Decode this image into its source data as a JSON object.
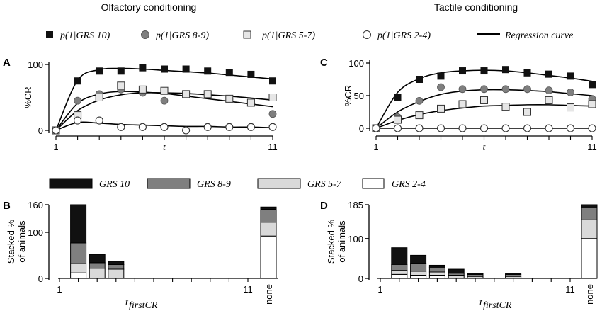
{
  "titles": {
    "left": "Olfactory conditioning",
    "right": "Tactile conditioning"
  },
  "panel_letters": {
    "a": "A",
    "b": "B",
    "c": "C",
    "d": "D"
  },
  "legend_top": {
    "items": [
      "p(1|GRS 10)",
      "p(1|GRS 8-9)",
      "p(1|GRS 5-7)",
      "p(1|GRS 2-4)"
    ],
    "regression": "Regression curve"
  },
  "legend_bottom": {
    "items": [
      "GRS 10",
      "GRS 8-9",
      "GRS 5-7",
      "GRS 2-4"
    ]
  },
  "colors": {
    "grs10": "#111111",
    "grs89": "#7f7f7f",
    "grs57": "#d9d9d9",
    "grs24": "#ffffff"
  },
  "chart_data": [
    {
      "id": "A",
      "type": "scatter",
      "title": "Olfactory conditioning",
      "xlabel": "t",
      "ylabel": "%CR",
      "xlim": [
        1,
        11
      ],
      "ylim": [
        0,
        100
      ],
      "xticks": [
        "1",
        "11"
      ],
      "yticks": [
        "0",
        "100"
      ],
      "x": [
        1,
        2,
        3,
        4,
        5,
        6,
        7,
        8,
        9,
        10,
        11
      ],
      "series": [
        {
          "name": "p(1|GRS 10)",
          "marker": "filled-square",
          "values": [
            0,
            75,
            90,
            90,
            95,
            93,
            93,
            90,
            88,
            85,
            75
          ],
          "fit": [
            0,
            76,
            92,
            94,
            93,
            91,
            89,
            87,
            84,
            81,
            78
          ]
        },
        {
          "name": "p(1|GRS 8-9)",
          "marker": "gray-circle",
          "values": [
            0,
            45,
            55,
            62,
            57,
            45,
            null,
            null,
            null,
            null,
            25
          ],
          "fit": [
            0,
            41,
            55,
            59,
            58,
            56,
            52,
            48,
            44,
            40,
            36
          ]
        },
        {
          "name": "p(1|GRS 5-7)",
          "marker": "open-square",
          "values": [
            0,
            23,
            50,
            68,
            62,
            60,
            55,
            55,
            48,
            42,
            50
          ],
          "fit": [
            0,
            30,
            46,
            54,
            57,
            57,
            56,
            54,
            52,
            49,
            46
          ]
        },
        {
          "name": "p(1|GRS 2-4)",
          "marker": "open-circle",
          "values": [
            0,
            15,
            15,
            5,
            5,
            5,
            0,
            5,
            5,
            5,
            5
          ],
          "fit": [
            0,
            12,
            11,
            9,
            8,
            7,
            6,
            6,
            5,
            5,
            4
          ]
        }
      ]
    },
    {
      "id": "C",
      "type": "scatter",
      "title": "Tactile conditioning",
      "xlabel": "t",
      "ylabel": "%CR",
      "xlim": [
        1,
        11
      ],
      "ylim": [
        0,
        100
      ],
      "xticks": [
        "1",
        "11"
      ],
      "yticks": [
        "0",
        "50",
        "100"
      ],
      "x": [
        1,
        2,
        3,
        4,
        5,
        6,
        7,
        8,
        9,
        10,
        11
      ],
      "series": [
        {
          "name": "p(1|GRS 10)",
          "marker": "filled-square",
          "values": [
            0,
            47,
            75,
            80,
            88,
            88,
            90,
            85,
            83,
            80,
            67
          ],
          "fit": [
            0,
            55,
            76,
            85,
            88,
            89,
            88,
            85,
            81,
            77,
            72
          ]
        },
        {
          "name": "p(1|GRS 8-9)",
          "marker": "gray-circle",
          "values": [
            0,
            17,
            42,
            63,
            60,
            60,
            60,
            60,
            58,
            55,
            45
          ],
          "fit": [
            0,
            25,
            41,
            52,
            57,
            59,
            59,
            58,
            56,
            53,
            50
          ]
        },
        {
          "name": "p(1|GRS 5-7)",
          "marker": "open-square",
          "values": [
            0,
            13,
            20,
            30,
            37,
            43,
            33,
            25,
            43,
            32,
            37
          ],
          "fit": [
            0,
            12,
            21,
            27,
            31,
            34,
            35,
            36,
            36,
            35,
            34
          ]
        },
        {
          "name": "p(1|GRS 2-4)",
          "marker": "open-circle",
          "values": [
            0,
            0,
            0,
            0,
            0,
            0,
            0,
            0,
            0,
            0,
            0
          ],
          "fit": [
            0,
            0,
            0,
            0,
            0,
            0,
            0,
            0,
            0,
            0,
            0
          ]
        }
      ]
    },
    {
      "id": "B",
      "type": "bar",
      "stacked": true,
      "xlabel": "t",
      "xlabel_sub": "firstCR",
      "ylabel": "Stacked % of animals",
      "ylim": [
        0,
        160
      ],
      "yticks": [
        "0",
        "100",
        "160"
      ],
      "xticks": [
        "1",
        "11",
        "none"
      ],
      "categories": [
        "2",
        "3",
        "4",
        "none"
      ],
      "series": [
        {
          "name": "GRS 2-4",
          "values": [
            12,
            0,
            0,
            92
          ]
        },
        {
          "name": "GRS 5-7",
          "values": [
            20,
            22,
            20,
            30
          ]
        },
        {
          "name": "GRS 8-9",
          "values": [
            45,
            12,
            10,
            28
          ]
        },
        {
          "name": "GRS 10",
          "values": [
            83,
            18,
            7,
            5
          ]
        }
      ]
    },
    {
      "id": "D",
      "type": "bar",
      "stacked": true,
      "xlabel": "t",
      "xlabel_sub": "firstCR",
      "ylabel": "Stacked % of animals",
      "ylim": [
        0,
        185
      ],
      "yticks": [
        "0",
        "100",
        "185"
      ],
      "xticks": [
        "1",
        "11",
        "none"
      ],
      "categories": [
        "2",
        "3",
        "4",
        "5",
        "6",
        "8",
        "none"
      ],
      "series": [
        {
          "name": "GRS 2-4",
          "values": [
            10,
            8,
            8,
            0,
            0,
            0,
            100
          ]
        },
        {
          "name": "GRS 5-7",
          "values": [
            10,
            10,
            8,
            8,
            5,
            5,
            47
          ]
        },
        {
          "name": "GRS 8-9",
          "values": [
            15,
            20,
            12,
            5,
            5,
            5,
            30
          ]
        },
        {
          "name": "GRS 10",
          "values": [
            42,
            20,
            5,
            10,
            3,
            3,
            8
          ]
        }
      ]
    }
  ]
}
